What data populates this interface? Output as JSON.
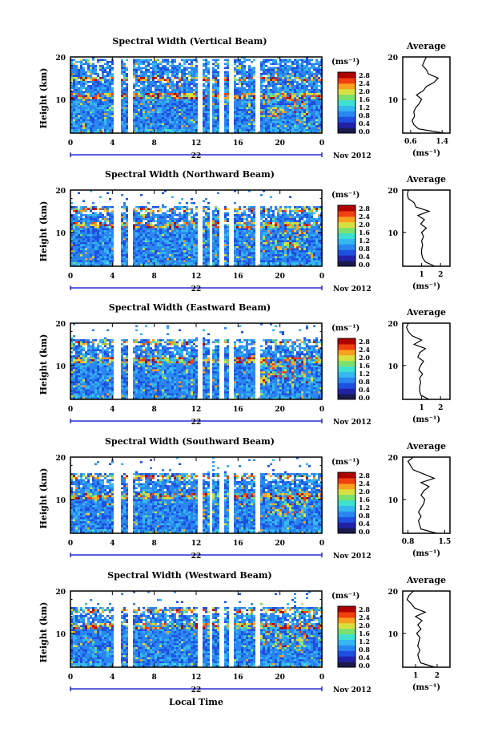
{
  "figure": {
    "date_label": "Nov 2012",
    "day_label": "22",
    "xlabel": "Local Time",
    "colorbar_unit": "(ms⁻¹)",
    "colorbar_ticks": [
      "0.0",
      "0.4",
      "0.8",
      "1.2",
      "1.6",
      "2.0",
      "2.4",
      "2.8"
    ],
    "colorbar_palette": [
      "#1a1a4d",
      "#2222a8",
      "#1e50e0",
      "#2a86f0",
      "#35b8f0",
      "#40e0d0",
      "#7ae070",
      "#d8e040",
      "#f8a020",
      "#f04010",
      "#b00000"
    ],
    "average_title": "Average",
    "average_xunit": "(ms⁻¹)"
  },
  "chart_data": [
    {
      "type": "heatmap",
      "title": "Spectral Width (Vertical Beam)",
      "ylabel": "Height (km)",
      "xlim": [
        0,
        24
      ],
      "ylim": [
        2,
        20
      ],
      "xticks": [
        "0",
        "4",
        "8",
        "12",
        "16",
        "20",
        "0"
      ],
      "yticks": [
        "10",
        "20"
      ],
      "gap_hours": [
        [
          4.1,
          4.7
        ],
        [
          5.5,
          5.9
        ],
        [
          12.1,
          12.6
        ],
        [
          13.2,
          13.5
        ],
        [
          14.2,
          14.5
        ],
        [
          15.1,
          15.4
        ],
        [
          17.6,
          17.9
        ]
      ],
      "data_top_km": 19.8,
      "enhanced_layers_km": [
        15,
        11
      ],
      "profile": {
        "xlim": [
          0.4,
          1.6
        ],
        "xticks": [
          "0.6",
          "1.4"
        ],
        "height_km": [
          2,
          3,
          4,
          5,
          6,
          7,
          8,
          9,
          10,
          11,
          12,
          13,
          14,
          15,
          16,
          17,
          18,
          19,
          20
        ],
        "values": [
          1.45,
          0.8,
          0.68,
          0.64,
          0.7,
          0.68,
          0.73,
          0.82,
          0.88,
          0.75,
          0.92,
          1.0,
          1.2,
          1.3,
          1.05,
          1.0,
          0.9,
          0.95,
          1.0
        ]
      }
    },
    {
      "type": "heatmap",
      "title": "Spectral Width (Northward Beam)",
      "ylabel": "Height (km)",
      "xlim": [
        0,
        24
      ],
      "ylim": [
        2,
        20
      ],
      "xticks": [
        "0",
        "4",
        "8",
        "12",
        "16",
        "20",
        "0"
      ],
      "yticks": [
        "10",
        "20"
      ],
      "gap_hours": [
        [
          4.1,
          4.7
        ],
        [
          5.5,
          5.9
        ],
        [
          12.1,
          12.6
        ],
        [
          13.2,
          13.5
        ],
        [
          14.2,
          14.5
        ],
        [
          15.1,
          15.4
        ],
        [
          17.6,
          17.9
        ]
      ],
      "data_top_km": 16.5,
      "enhanced_layers_km": [
        15.5,
        12
      ],
      "profile": {
        "xlim": [
          0,
          2.5
        ],
        "xticks": [
          "1",
          "2"
        ],
        "height_km": [
          2,
          3,
          4,
          5,
          6,
          7,
          8,
          9,
          10,
          11,
          12,
          13,
          14,
          15,
          16,
          17,
          18,
          19,
          20
        ],
        "values": [
          1.7,
          1.2,
          1.05,
          1.0,
          1.0,
          1.05,
          1.0,
          1.1,
          1.0,
          1.25,
          0.95,
          1.15,
          0.8,
          1.4,
          0.7,
          0.6,
          0.3,
          0.25,
          0.3
        ]
      }
    },
    {
      "type": "heatmap",
      "title": "Spectral Width (Eastward Beam)",
      "ylabel": "Height (km)",
      "xlim": [
        0,
        24
      ],
      "ylim": [
        2,
        20
      ],
      "xticks": [
        "0",
        "4",
        "8",
        "12",
        "16",
        "20",
        "0"
      ],
      "yticks": [
        "10",
        "20"
      ],
      "gap_hours": [
        [
          4.1,
          4.7
        ],
        [
          5.5,
          5.9
        ],
        [
          12.1,
          12.6
        ],
        [
          13.2,
          13.5
        ],
        [
          14.2,
          14.5
        ],
        [
          15.1,
          15.4
        ],
        [
          17.6,
          17.9
        ]
      ],
      "data_top_km": 16.5,
      "enhanced_layers_km": [
        15.5,
        11.5
      ],
      "profile": {
        "xlim": [
          0,
          2.5
        ],
        "xticks": [
          "1",
          "2"
        ],
        "height_km": [
          2,
          3,
          4,
          5,
          6,
          7,
          8,
          9,
          10,
          11,
          12,
          13,
          14,
          15,
          16,
          17,
          18,
          19,
          20
        ],
        "values": [
          1.4,
          0.95,
          0.9,
          0.9,
          0.95,
          0.9,
          1.05,
          0.85,
          0.95,
          1.1,
          0.8,
          0.9,
          1.2,
          0.6,
          1.0,
          0.5,
          0.3,
          0.2,
          0.3
        ]
      }
    },
    {
      "type": "heatmap",
      "title": "Spectral Width (Southward Beam)",
      "ylabel": "Height (km)",
      "xlim": [
        0,
        24
      ],
      "ylim": [
        2,
        20
      ],
      "xticks": [
        "0",
        "4",
        "8",
        "12",
        "16",
        "20",
        "0"
      ],
      "yticks": [
        "10",
        "20"
      ],
      "gap_hours": [
        [
          4.1,
          4.7
        ],
        [
          5.5,
          5.9
        ],
        [
          12.1,
          12.6
        ],
        [
          13.2,
          13.5
        ],
        [
          14.2,
          14.5
        ],
        [
          15.1,
          15.4
        ],
        [
          17.6,
          17.9
        ]
      ],
      "data_top_km": 16.5,
      "enhanced_layers_km": [
        15.5,
        11
      ],
      "profile": {
        "xlim": [
          0.7,
          1.6
        ],
        "xticks": [
          "0.8",
          "1.5"
        ],
        "height_km": [
          2,
          3,
          4,
          5,
          6,
          7,
          8,
          9,
          10,
          11,
          12,
          13,
          14,
          15,
          16,
          17,
          18,
          19,
          20
        ],
        "values": [
          1.35,
          1.05,
          1.02,
          1.0,
          1.05,
          1.0,
          1.05,
          1.1,
          1.12,
          1.05,
          1.1,
          1.2,
          1.05,
          1.3,
          1.1,
          0.9,
          0.85,
          0.8,
          0.9
        ]
      }
    },
    {
      "type": "heatmap",
      "title": "Spectral Width (Westward Beam)",
      "ylabel": "Height (km)",
      "xlim": [
        0,
        24
      ],
      "ylim": [
        2,
        20
      ],
      "xticks": [
        "0",
        "4",
        "8",
        "12",
        "16",
        "20",
        "0"
      ],
      "yticks": [
        "10",
        "20"
      ],
      "gap_hours": [
        [
          4.1,
          4.7
        ],
        [
          5.5,
          5.9
        ],
        [
          12.1,
          12.6
        ],
        [
          13.2,
          13.5
        ],
        [
          14.2,
          14.5
        ],
        [
          15.1,
          15.4
        ],
        [
          17.6,
          17.9
        ]
      ],
      "data_top_km": 16.5,
      "enhanced_layers_km": [
        15.5,
        12
      ],
      "profile": {
        "xlim": [
          0.4,
          2.6
        ],
        "xticks": [
          "1",
          "2"
        ],
        "height_km": [
          2,
          3,
          4,
          5,
          6,
          7,
          8,
          9,
          10,
          11,
          12,
          13,
          14,
          15,
          16,
          17,
          18,
          19,
          20
        ],
        "values": [
          1.9,
          1.25,
          1.15,
          1.1,
          1.2,
          1.1,
          1.15,
          1.2,
          1.05,
          1.25,
          1.1,
          1.3,
          1.0,
          1.45,
          0.95,
          0.8,
          0.6,
          0.7,
          0.9
        ]
      }
    }
  ]
}
